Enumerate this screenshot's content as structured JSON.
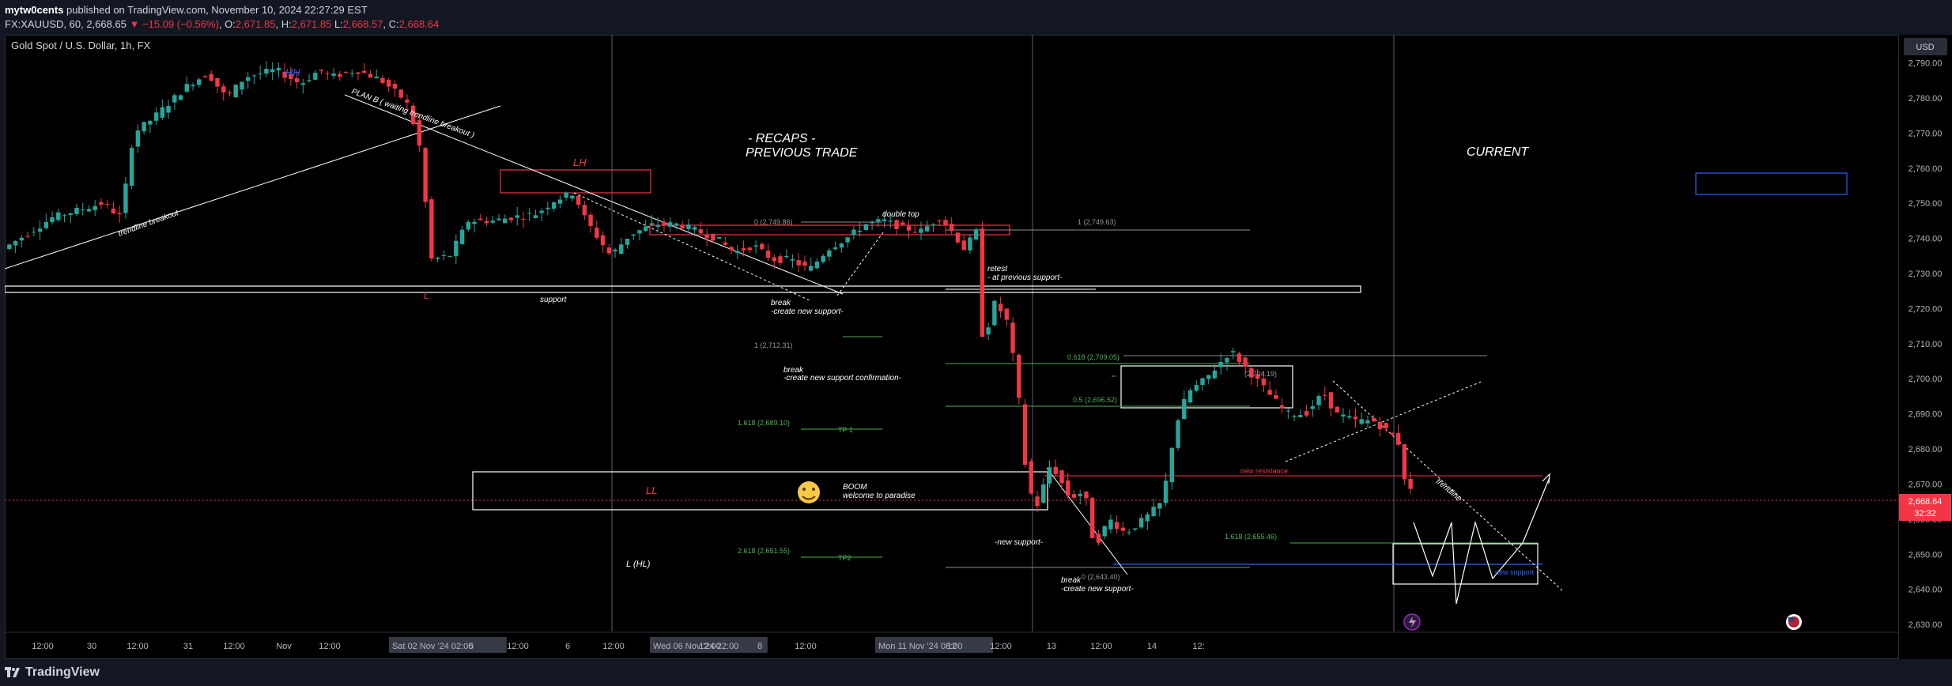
{
  "header": {
    "author": "mytw0cents",
    "published_text": "published on TradingView.com, November 10, 2024 22:27:29 EST",
    "symbol_interval": "FX:XAUUSD, 60",
    "last_price": "2,668.65",
    "change_arrow": "▼",
    "change": "−15.09 (−0.56%)",
    "o_label": "O:",
    "o_value": "2,671.85",
    "h_label": "H:",
    "h_value": "2,671.85",
    "l_label": "L:",
    "l_value": "2,668.57",
    "c_label": "C:",
    "c_value": "2,668.64"
  },
  "chart": {
    "title": "Gold Spot / U.S. Dollar, 1h, FX",
    "currency_button": "USD",
    "current_price_label": "2,668.64",
    "countdown_label": "32:32",
    "colors": {
      "up": "#26a69a",
      "down": "#f23645",
      "background": "#000000",
      "support_box": "#ffffff",
      "lh_box": "#f23645",
      "blue_box": "#2962ff"
    },
    "price_axis": [
      "2,790.00",
      "2,780.00",
      "2,770.00",
      "2,760.00",
      "2,750.00",
      "2,740.00",
      "2,730.00",
      "2,720.00",
      "2,710.00",
      "2,700.00",
      "2,690.00",
      "2,680.00",
      "2,670.00",
      "2,660.00",
      "2,650.00",
      "2,640.00",
      "2,630.00"
    ],
    "time_axis": [
      "12:00",
      "30",
      "12:00",
      "31",
      "12:00",
      "Nov",
      "12:00",
      "Sat 02 Nov '24   02:00",
      "5",
      "12:00",
      "6",
      "12:00",
      "Wed 06 Nov '24   22:00",
      "12:00",
      "8",
      "12:00",
      "Mon 11 Nov '24   08:00",
      "12",
      "12:00",
      "13",
      "12:00",
      "14",
      "12:"
    ],
    "annotations": {
      "hh": "HH",
      "lh": "LH",
      "ll": "LL",
      "l_low": "L",
      "l_hl": "L (HL)",
      "plan_b": "PLAN B ( waiting trendline breakout )",
      "trendline_breakout": "trendline breakout",
      "recaps_1": "- RECAPS -",
      "recaps_2": "PREVIOUS TRADE",
      "current": "CURRENT",
      "double_top": "double top",
      "support": "support",
      "break1_a": "break",
      "break1_b": "-create new support-",
      "break2_a": "break",
      "break2_b": "-create new support confirmation-",
      "retest_a": "retest",
      "retest_b": "- at previous support-",
      "boom_a": "BOOM",
      "boom_b": "welcome to paradise",
      "new_support": "-new support-",
      "break3_a": "break",
      "break3_b": "-create new support-",
      "new_resistance": "new resistance",
      "new_support_blue": "new support",
      "trendline": "trendline",
      "tp1": "TP 1",
      "tp2": "TP2",
      "fib_0_a": "0 (2,749.86)",
      "fib_1_a": "1 (2,712.31)",
      "fib_1618_a": "1.618 (2,689.10)",
      "fib_2618_a": "2.618 (2,651.55)",
      "fib_1_b": "1 (2,749.63)",
      "fib_0618_b": "0.618 (2,709.05)",
      "fib_05_b": "0.5 (2,696.52)",
      "fib_0_b": "0 (2,643.40)",
      "fib_0_c": "(2,704.19)",
      "fib_1618_c": "1.618 (2,655.46)"
    }
  },
  "chart_data": {
    "type": "candlestick",
    "title": "Gold Spot / U.S. Dollar, 1h, FX",
    "ylim": [
      2628,
      2798
    ],
    "y_ticks": [
      2630,
      2640,
      2650,
      2660,
      2670,
      2680,
      2690,
      2700,
      2710,
      2720,
      2730,
      2740,
      2750,
      2760,
      2770,
      2780,
      2790
    ],
    "path": [
      [
        0,
        2737
      ],
      [
        40,
        2746
      ],
      [
        80,
        2750
      ],
      [
        95,
        2746
      ],
      [
        105,
        2770
      ],
      [
        120,
        2774
      ],
      [
        150,
        2784
      ],
      [
        165,
        2787
      ],
      [
        180,
        2780
      ],
      [
        195,
        2786
      ],
      [
        220,
        2788
      ],
      [
        240,
        2784
      ],
      [
        255,
        2788
      ],
      [
        265,
        2786
      ],
      [
        285,
        2788
      ],
      [
        305,
        2785
      ],
      [
        325,
        2779
      ],
      [
        335,
        2768
      ],
      [
        340,
        2752
      ],
      [
        345,
        2734
      ],
      [
        360,
        2735
      ],
      [
        375,
        2745
      ],
      [
        395,
        2745
      ],
      [
        410,
        2746
      ],
      [
        430,
        2747
      ],
      [
        445,
        2751
      ],
      [
        460,
        2753
      ],
      [
        470,
        2745
      ],
      [
        480,
        2740
      ],
      [
        490,
        2735
      ],
      [
        505,
        2741
      ],
      [
        525,
        2744
      ],
      [
        545,
        2744
      ],
      [
        560,
        2742
      ],
      [
        575,
        2740
      ],
      [
        590,
        2736
      ],
      [
        605,
        2738
      ],
      [
        620,
        2734
      ],
      [
        635,
        2734
      ],
      [
        650,
        2731
      ],
      [
        665,
        2737
      ],
      [
        680,
        2740
      ],
      [
        695,
        2744
      ],
      [
        710,
        2745
      ],
      [
        725,
        2743
      ],
      [
        740,
        2742
      ],
      [
        755,
        2746
      ],
      [
        765,
        2742
      ],
      [
        775,
        2737
      ],
      [
        785,
        2742
      ],
      [
        790,
        2710
      ],
      [
        800,
        2722
      ],
      [
        810,
        2716
      ],
      [
        818,
        2698
      ],
      [
        824,
        2676
      ],
      [
        832,
        2662
      ],
      [
        845,
        2676
      ],
      [
        860,
        2666
      ],
      [
        872,
        2668
      ],
      [
        880,
        2652
      ],
      [
        892,
        2660
      ],
      [
        905,
        2656
      ],
      [
        920,
        2660
      ],
      [
        935,
        2665
      ],
      [
        945,
        2686
      ],
      [
        955,
        2696
      ],
      [
        970,
        2700
      ],
      [
        990,
        2708
      ],
      [
        1010,
        2700
      ],
      [
        1025,
        2694
      ],
      [
        1035,
        2690
      ],
      [
        1050,
        2690
      ],
      [
        1065,
        2696
      ],
      [
        1075,
        2690
      ],
      [
        1090,
        2688
      ],
      [
        1105,
        2688
      ],
      [
        1120,
        2684
      ],
      [
        1125,
        2682
      ],
      [
        1130,
        2672
      ],
      [
        1135,
        2668
      ]
    ]
  }
}
